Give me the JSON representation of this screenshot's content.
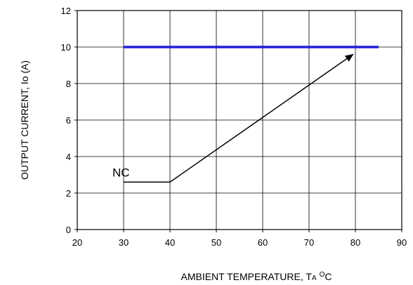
{
  "chart_data": {
    "type": "line",
    "xlabel": "AMBIENT TEMPERATURE, T",
    "xlabel_sub": "A",
    "xlabel_unit": "O",
    "xlabel_tail": "C",
    "ylabel": "OUTPUT CURRENT, Io  (A)",
    "xlim": [
      20,
      90
    ],
    "ylim": [
      0,
      12
    ],
    "xticks": [
      20,
      30,
      40,
      50,
      60,
      70,
      80,
      90
    ],
    "yticks": [
      0,
      2,
      4,
      6,
      8,
      10,
      12
    ],
    "grid": true,
    "series": [
      {
        "color": "#1f1fd6",
        "points": [
          [
            30,
            10
          ],
          [
            85,
            10
          ]
        ]
      }
    ],
    "annotation_path": {
      "label": "NC",
      "color": "#000000",
      "points": [
        [
          30,
          2.6
        ],
        [
          40,
          2.6
        ],
        [
          79.5,
          9.6
        ]
      ],
      "arrow": true
    }
  }
}
